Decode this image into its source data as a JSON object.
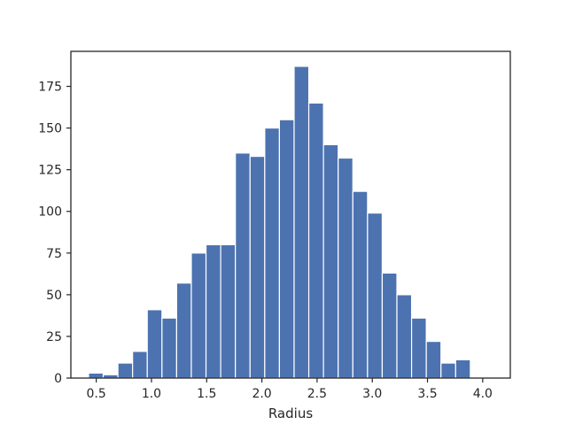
{
  "chart_data": {
    "type": "bar",
    "title": "",
    "xlabel": "Radius",
    "ylabel": "",
    "bar_color": "#4c72b0",
    "grid": false,
    "xlim": [
      0.27,
      4.25
    ],
    "ylim": [
      0,
      196
    ],
    "xticks": [
      0.5,
      1.0,
      1.5,
      2.0,
      2.5,
      3.0,
      3.5,
      4.0
    ],
    "xtick_labels": [
      "0.5",
      "1.0",
      "1.5",
      "2.0",
      "2.5",
      "3.0",
      "3.5",
      "4.0"
    ],
    "yticks": [
      0,
      25,
      50,
      75,
      100,
      125,
      150,
      175
    ],
    "ytick_labels": [
      "0",
      "25",
      "50",
      "75",
      "100",
      "125",
      "150",
      "175"
    ],
    "bin_edges": [
      0.43,
      0.563,
      0.696,
      0.829,
      0.962,
      1.095,
      1.228,
      1.361,
      1.494,
      1.627,
      1.76,
      1.893,
      2.026,
      2.159,
      2.292,
      2.425,
      2.558,
      2.691,
      2.824,
      2.957,
      3.09,
      3.223,
      3.356,
      3.489,
      3.622,
      3.755,
      3.888,
      4.021
    ],
    "values": [
      3,
      2,
      9,
      16,
      41,
      36,
      57,
      75,
      80,
      80,
      135,
      133,
      150,
      155,
      187,
      165,
      140,
      132,
      112,
      99,
      63,
      50,
      36,
      22,
      9,
      11,
      0
    ]
  }
}
